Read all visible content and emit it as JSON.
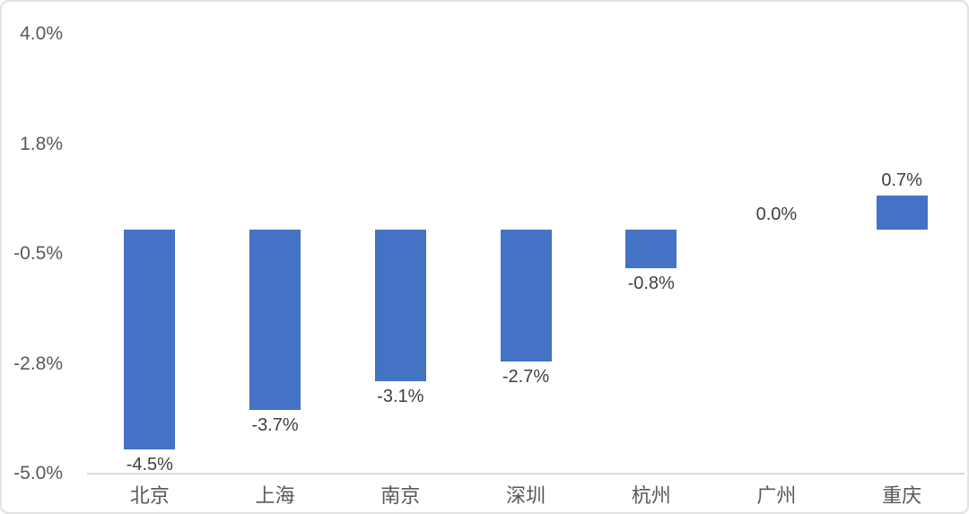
{
  "chart_data": {
    "type": "bar",
    "title": "",
    "categories": [
      "北京",
      "上海",
      "南京",
      "深圳",
      "杭州",
      "广州",
      "重庆"
    ],
    "category_ids": [
      "beijing",
      "shanghai",
      "nanjing",
      "shenzhen",
      "hangzhou",
      "guangzhou",
      "chongqing"
    ],
    "values": [
      -4.5,
      -3.7,
      -3.1,
      -2.7,
      -0.8,
      0.0,
      0.7
    ],
    "value_labels": [
      "-4.5%",
      "-3.7%",
      "-3.1%",
      "-2.7%",
      "-0.8%",
      "0.0%",
      "0.7%"
    ],
    "unit": "%",
    "y_axis": {
      "min": -5.0,
      "max": 4.0,
      "ticks": [
        {
          "value": 4.0,
          "label": "4.0%"
        },
        {
          "value": 1.75,
          "label": "1.8%"
        },
        {
          "value": -0.5,
          "label": "-0.5%"
        },
        {
          "value": -2.75,
          "label": "-2.8%"
        },
        {
          "value": -5.0,
          "label": "-5.0%"
        }
      ],
      "axis_line_at": -5.0
    },
    "grid": false,
    "legend": false,
    "data_labels_shown": true,
    "colors": {
      "bar": "#4472C4",
      "tick_label": "#595959",
      "data_label": "#3F3F3F",
      "category_label": "#595959",
      "axis_line": "#D9D9D9",
      "background": "#FFFFFF",
      "card_border": "#E2E2E2"
    }
  }
}
